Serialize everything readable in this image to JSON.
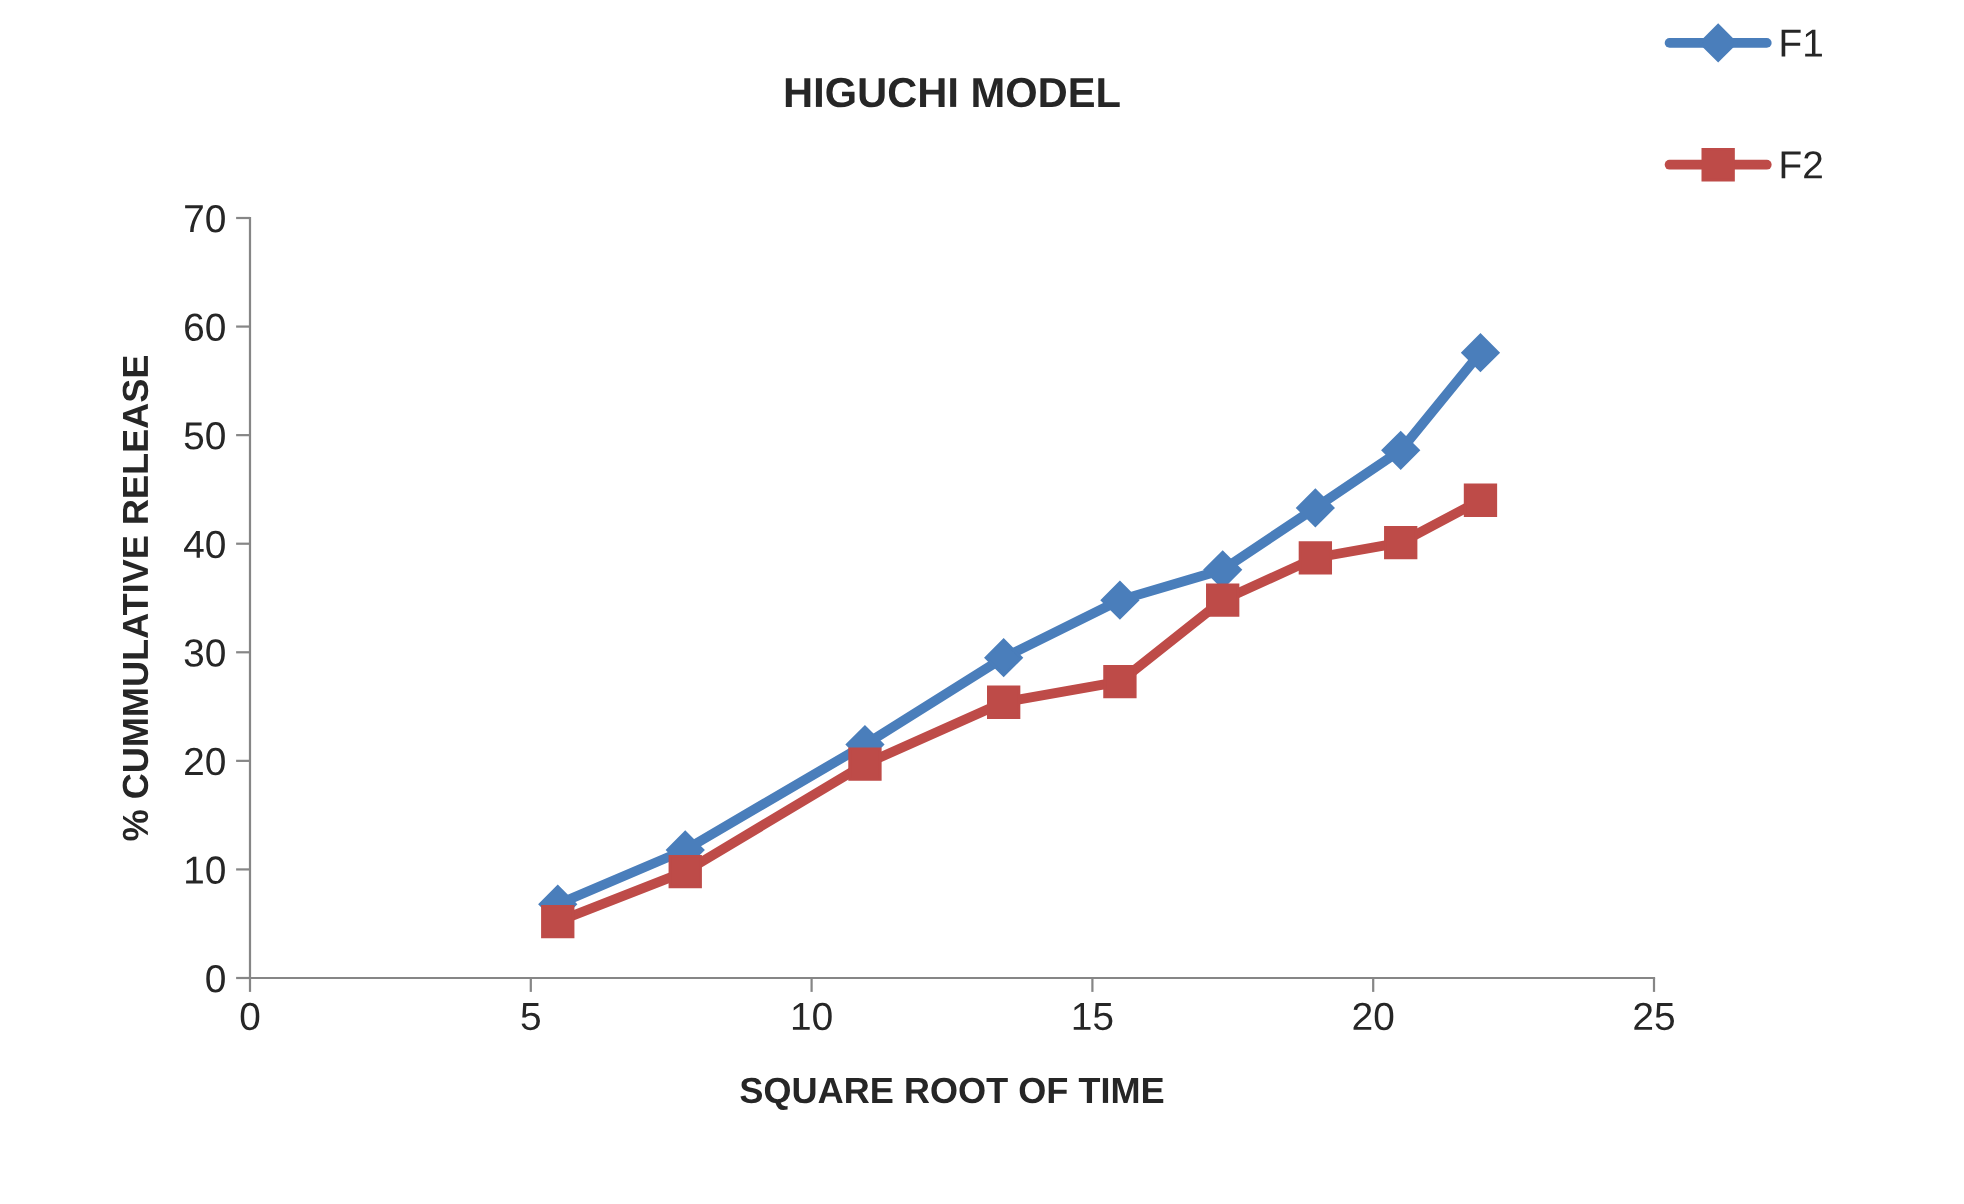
{
  "chart_data": {
    "type": "line",
    "title": "HIGUCHI MODEL",
    "xlabel": "SQUARE ROOT OF TIME",
    "ylabel": "% CUMMULATIVE RELEASE",
    "x": [
      5.48,
      7.75,
      10.95,
      13.42,
      15.49,
      17.32,
      18.97,
      20.49,
      21.91
    ],
    "series": [
      {
        "name": "F1",
        "color": "#4a7ebb",
        "marker": "diamond",
        "values": [
          6.8,
          11.8,
          21.5,
          29.5,
          34.8,
          37.6,
          43.3,
          48.6,
          57.6
        ]
      },
      {
        "name": "F2",
        "color": "#be4b48",
        "marker": "square",
        "values": [
          5.2,
          9.8,
          19.7,
          25.4,
          27.3,
          34.8,
          38.7,
          40.1,
          44.0
        ]
      }
    ],
    "xlim": [
      0,
      25
    ],
    "xticks": [
      0,
      5,
      10,
      15,
      20,
      25
    ],
    "ylim": [
      0,
      70
    ],
    "yticks": [
      0,
      10,
      20,
      30,
      40,
      50,
      60,
      70
    ],
    "grid": false,
    "legend": "top right",
    "line_style": "solid"
  }
}
